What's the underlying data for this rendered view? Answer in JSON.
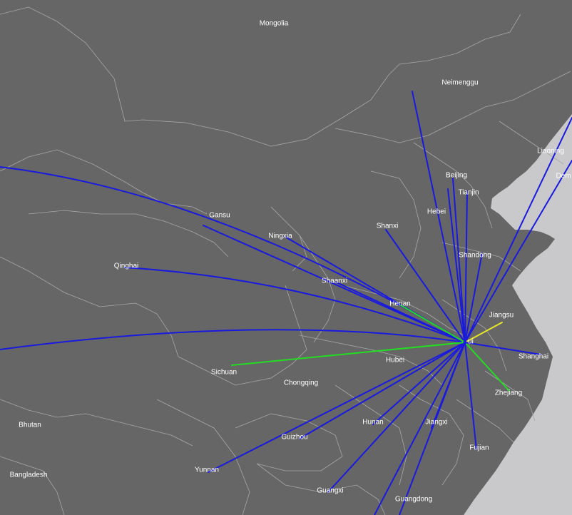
{
  "map": {
    "colors": {
      "land": "#666666",
      "sea": "#c9c9cc",
      "border": "#a8a8a8",
      "flow_primary": "#1a1adf",
      "flow_secondary": "#22dd22",
      "flow_tertiary": "#e6e62a",
      "label": "#ffffff"
    },
    "labels": {
      "mongolia": "Mongolia",
      "neimenggu": "Neimenggu",
      "liaoning": "Liaoning",
      "dem": "Dem",
      "beijing": "Beijing",
      "tianjin": "Tianjin",
      "hebei": "Hebei",
      "gansu": "Gansu",
      "ningxia": "Ningxia",
      "shanxi": "Shanxi",
      "shandong": "Shandong",
      "qinghai": "Qinghai",
      "shaanxi": "Shaanxi",
      "henan": "Henan",
      "jiangsu": "Jiangsu",
      "anhui": "ui",
      "shanghai": "Shanghai",
      "hubei": "Hubei",
      "sichuan": "Sichuan",
      "chongqing": "Chongqing",
      "zhejiang": "Zhejiang",
      "bhutan": "Bhutan",
      "hunan": "Hunan",
      "jiangxi": "Jiangxi",
      "guizhou": "Guizhou",
      "fujian": "Fujian",
      "yunnan": "Yunnan",
      "bangladesh": "Bangladesh",
      "guangxi": "Guangxi",
      "guangdong": "Guangdong"
    }
  }
}
